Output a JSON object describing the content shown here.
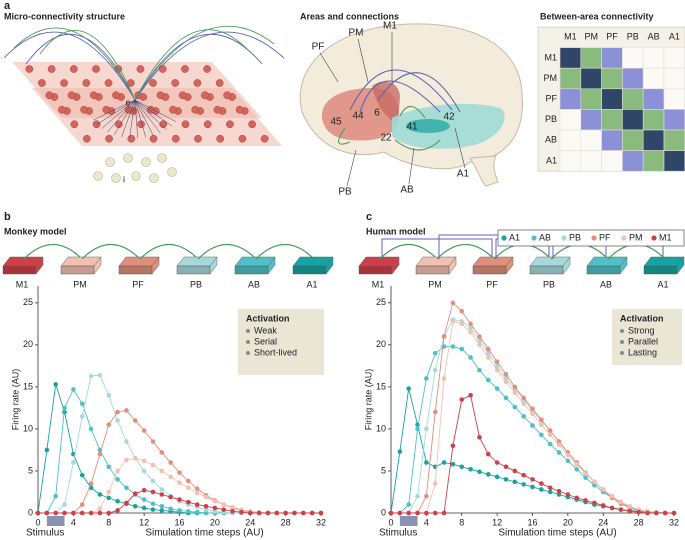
{
  "panel_a": {
    "letter": "a",
    "micro_title": "Micro-connectivity structure",
    "micro_labels": [
      "e",
      "i"
    ],
    "areas_title": "Areas and connections",
    "brain_labels": [
      "PF",
      "PM",
      "M1",
      "45",
      "44",
      "6",
      "41",
      "42",
      "22",
      "PB",
      "AB",
      "A1"
    ],
    "matrix_title": "Between-area connectivity",
    "matrix_labels": [
      "M1",
      "PM",
      "PF",
      "PB",
      "AB",
      "A1"
    ],
    "matrix_colors": [
      "#2f4668",
      "#89bb7f",
      "#8c90d6"
    ]
  },
  "chart_data": [
    {
      "type": "line",
      "letter": "b",
      "title": "Monkey model",
      "areas": [
        "M1",
        "PM",
        "PF",
        "PB",
        "AB",
        "A1"
      ],
      "activation": {
        "title": "Activation",
        "items": [
          "Weak",
          "Serial",
          "Short-lived"
        ]
      },
      "stimulus": "Stimulus",
      "stimulus_span": [
        1,
        3
      ],
      "xlabel": "Simulation time steps (AU)",
      "ylabel": "Firing rate (AU)",
      "x": [
        0,
        1,
        2,
        3,
        4,
        5,
        6,
        7,
        8,
        9,
        10,
        11,
        12,
        13,
        14,
        15,
        16,
        17,
        18,
        19,
        20,
        21,
        22,
        23,
        24,
        25,
        26,
        27,
        28,
        29,
        30,
        31,
        32
      ],
      "xlim": [
        0,
        32
      ],
      "ylim": [
        0,
        27
      ],
      "xticks": [
        0,
        4,
        8,
        12,
        16,
        20,
        24,
        28,
        32
      ],
      "yticks": [
        0,
        5,
        10,
        15,
        20,
        25
      ],
      "series": [
        {
          "name": "A1",
          "color": "#17a3a3",
          "values": [
            0,
            7.5,
            15.3,
            12,
            7,
            4.5,
            3,
            2.2,
            1.8,
            1.4,
            1.1,
            0.8,
            0.6,
            0.4,
            0.3,
            0.2,
            0.1,
            0,
            0,
            0,
            0,
            0,
            0,
            0,
            0,
            0,
            0,
            0,
            0,
            0,
            0,
            0,
            0
          ]
        },
        {
          "name": "AB",
          "color": "#4fc0c8",
          "values": [
            0,
            0,
            2,
            12.5,
            14.7,
            13,
            10,
            7.5,
            5.5,
            4,
            3,
            2.2,
            1.6,
            1.1,
            0.8,
            0.5,
            0.3,
            0.2,
            0.1,
            0,
            0,
            0,
            0,
            0,
            0,
            0,
            0,
            0,
            0,
            0,
            0,
            0,
            0
          ]
        },
        {
          "name": "PB",
          "color": "#a6d8dc",
          "values": [
            0,
            0,
            0,
            1,
            6,
            11.5,
            16.3,
            16.4,
            14,
            11,
            8.5,
            6.5,
            5,
            3.8,
            2.8,
            2,
            1.4,
            1,
            0.7,
            0.4,
            0.2,
            0.1,
            0,
            0,
            0,
            0,
            0,
            0,
            0,
            0,
            0,
            0,
            0
          ]
        },
        {
          "name": "PF",
          "color": "#e08f7a",
          "values": [
            0,
            0,
            0,
            0,
            0,
            1,
            3.5,
            7,
            10.5,
            12,
            12.2,
            11,
            9.8,
            8.5,
            7.2,
            6,
            4.8,
            3.8,
            2.9,
            2.1,
            1.5,
            1,
            0.6,
            0.3,
            0.1,
            0,
            0,
            0,
            0,
            0,
            0,
            0,
            0
          ]
        },
        {
          "name": "PM",
          "color": "#f2c0b0",
          "values": [
            0,
            0,
            0,
            0,
            0,
            0,
            0,
            0.5,
            2.5,
            5,
            6.3,
            6.5,
            6.2,
            5.7,
            5,
            4.3,
            3.6,
            3,
            2.4,
            1.9,
            1.4,
            1,
            0.7,
            0.4,
            0.2,
            0.1,
            0,
            0,
            0,
            0,
            0,
            0,
            0
          ]
        },
        {
          "name": "M1",
          "color": "#cf3f48",
          "values": [
            0,
            0,
            0,
            0,
            0,
            0,
            0,
            0,
            0,
            0.3,
            1.2,
            2.3,
            2.7,
            2.5,
            2.2,
            1.9,
            1.6,
            1.3,
            1,
            0.8,
            0.6,
            0.4,
            0.2,
            0.1,
            0,
            0,
            0,
            0,
            0,
            0,
            0,
            0,
            0
          ]
        }
      ]
    },
    {
      "type": "line",
      "letter": "c",
      "title": "Human model",
      "areas": [
        "M1",
        "PM",
        "PF",
        "PB",
        "AB",
        "A1"
      ],
      "activation": {
        "title": "Activation",
        "items": [
          "Strong",
          "Parallel",
          "Lasting"
        ]
      },
      "stimulus": "Stimulus",
      "stimulus_span": [
        1,
        3
      ],
      "xlabel": "Simulation time steps (AU)",
      "ylabel": "Firing rate (AU)",
      "legend": "top-right",
      "x": [
        0,
        1,
        2,
        3,
        4,
        5,
        6,
        7,
        8,
        9,
        10,
        11,
        12,
        13,
        14,
        15,
        16,
        17,
        18,
        19,
        20,
        21,
        22,
        23,
        24,
        25,
        26,
        27,
        28,
        29,
        30,
        31,
        32
      ],
      "xlim": [
        0,
        32
      ],
      "ylim": [
        0,
        27
      ],
      "xticks": [
        0,
        4,
        8,
        12,
        16,
        20,
        24,
        28,
        32
      ],
      "yticks": [
        0,
        5,
        10,
        15,
        20,
        25
      ],
      "series": [
        {
          "name": "A1",
          "color": "#17a3a3",
          "values": [
            0,
            7.3,
            14.8,
            10.5,
            6,
            5.5,
            6,
            5.8,
            5.5,
            5.2,
            4.9,
            4.6,
            4.3,
            4,
            3.7,
            3.4,
            3.1,
            2.8,
            2.5,
            2.2,
            1.9,
            1.6,
            1.3,
            1,
            0.8,
            0.6,
            0.4,
            0.3,
            0.2,
            0.1,
            0,
            0,
            0
          ]
        },
        {
          "name": "AB",
          "color": "#4fc0c8",
          "values": [
            0,
            0,
            1,
            10,
            16,
            19,
            19.8,
            19.8,
            19.5,
            18.5,
            17,
            15.8,
            14.8,
            13.7,
            12.6,
            11.5,
            10.4,
            9.3,
            8.2,
            7.2,
            6.2,
            5.2,
            4.2,
            3.3,
            2.5,
            1.8,
            1.2,
            0.7,
            0.4,
            0.2,
            0.1,
            0,
            0
          ]
        },
        {
          "name": "PB",
          "color": "#a6d8dc",
          "values": [
            0,
            0,
            0,
            2,
            10,
            17,
            21,
            23,
            22.8,
            22,
            20.5,
            19,
            17.5,
            16,
            14.8,
            13.5,
            12.2,
            11,
            9.8,
            8.5,
            7.2,
            6,
            4.8,
            3.7,
            2.8,
            2,
            1.3,
            0.8,
            0.4,
            0.2,
            0.1,
            0,
            0
          ]
        },
        {
          "name": "PF",
          "color": "#e08f7a",
          "values": [
            0,
            0,
            0,
            0,
            2,
            12,
            21,
            25,
            24,
            22.5,
            21,
            19.5,
            18,
            16.5,
            15,
            13.7,
            12.4,
            11.1,
            9.8,
            8.5,
            7.2,
            6,
            4.8,
            3.7,
            2.7,
            1.8,
            1.1,
            0.6,
            0.3,
            0.1,
            0,
            0,
            0
          ]
        },
        {
          "name": "PM",
          "color": "#f2c0b0",
          "values": [
            0,
            0,
            0,
            0,
            0,
            3.5,
            16,
            22.8,
            22.5,
            21.5,
            20,
            18.5,
            17,
            15.6,
            14.3,
            13,
            11.8,
            10.5,
            9.3,
            8.1,
            6.9,
            5.8,
            4.7,
            3.7,
            2.8,
            2,
            1.3,
            0.8,
            0.4,
            0.2,
            0.1,
            0,
            0
          ]
        },
        {
          "name": "M1",
          "color": "#cf3f48",
          "values": [
            0,
            0,
            0,
            0,
            0,
            0,
            0,
            8,
            13.5,
            14,
            9,
            7,
            6,
            5.5,
            5,
            4.5,
            4,
            3.5,
            3,
            2.6,
            2.2,
            1.8,
            1.5,
            1.2,
            0.9,
            0.6,
            0.4,
            0.2,
            0.1,
            0,
            0,
            0,
            0
          ]
        }
      ]
    }
  ]
}
